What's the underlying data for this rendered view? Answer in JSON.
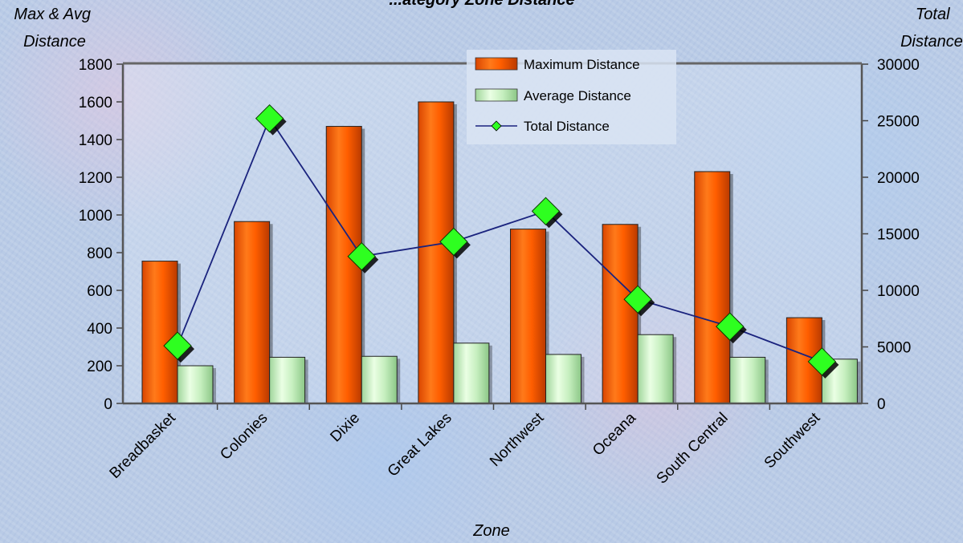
{
  "chart_data": {
    "type": "bar",
    "title": "...ategory Zone Distance",
    "xlabel": "Zone",
    "ylabel_left": [
      "Max & Avg",
      "Distance"
    ],
    "ylabel_right": [
      "Total",
      "Distance"
    ],
    "categories": [
      "Breadbasket",
      "Colonies",
      "Dixie",
      "Great Lakes",
      "Northwest",
      "Oceana",
      "South Central",
      "Southwest"
    ],
    "left_axis": {
      "min": 0,
      "max": 1800,
      "ticks": [
        "0",
        "200",
        "400",
        "600",
        "800",
        "1000",
        "1200",
        "1400",
        "1600",
        "1800"
      ]
    },
    "right_axis": {
      "min": 0,
      "max": 30000,
      "ticks": [
        "0",
        "5000",
        "10000",
        "15000",
        "20000",
        "25000",
        "30000"
      ]
    },
    "series": [
      {
        "name": "Maximum Distance",
        "type": "bar",
        "axis": "left",
        "color": "#ff5a00",
        "values": [
          755,
          965,
          1470,
          1600,
          925,
          950,
          1230,
          455
        ]
      },
      {
        "name": "Average Distance",
        "type": "bar",
        "axis": "left",
        "color": "#c8f0c0",
        "values": [
          200,
          245,
          250,
          320,
          260,
          365,
          245,
          235
        ]
      },
      {
        "name": "Total Distance",
        "type": "line",
        "axis": "right",
        "color": "#1a237e",
        "marker_color": "#2eff20",
        "values": [
          5100,
          25200,
          13000,
          14300,
          17000,
          9200,
          6800,
          3700
        ]
      }
    ],
    "legend": "top-right inside plot",
    "grid": false
  }
}
